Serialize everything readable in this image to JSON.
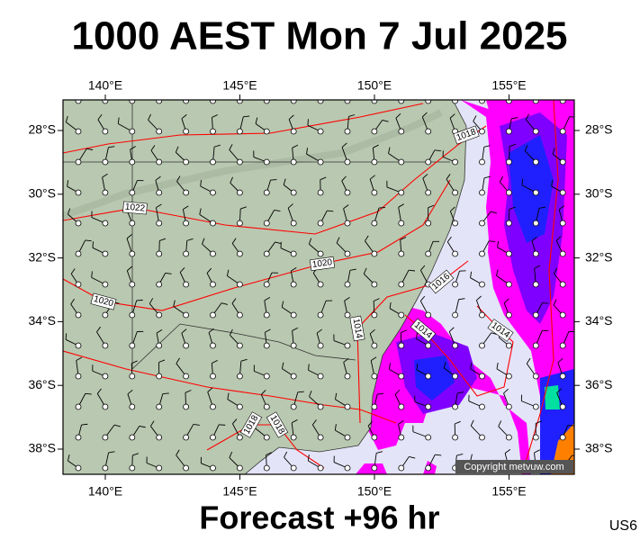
{
  "header": {
    "title": "1000 AEST Mon 7 Jul 2025"
  },
  "map": {
    "lon_labels": [
      "140°E",
      "145°E",
      "150°E",
      "155°E"
    ],
    "lat_labels": [
      "28°S",
      "30°S",
      "32°S",
      "34°S",
      "36°S",
      "38°S"
    ],
    "isobar_labels": [
      "1018",
      "1022",
      "1020",
      "1020",
      "1016",
      "1014",
      "1014",
      "1014",
      "1018",
      "1018"
    ],
    "copyright": "Copyright metvuw.com"
  },
  "footer": {
    "forecast": "Forecast +96 hr",
    "code": "US6"
  }
}
